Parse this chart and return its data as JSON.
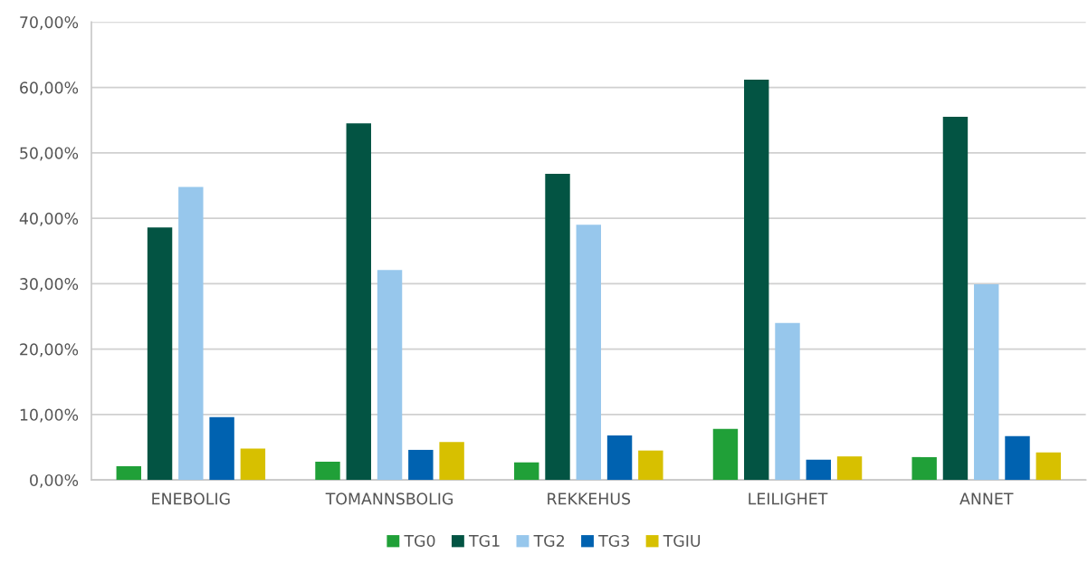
{
  "chart_data": {
    "type": "bar",
    "categories": [
      "ENEBOLIG",
      "TOMANNSBOLIG",
      "REKKEHUS",
      "LEILIGHET",
      "ANNET"
    ],
    "series": [
      {
        "name": "TG0",
        "color": "#20a038",
        "values": [
          2.1,
          2.8,
          2.7,
          7.8,
          3.5
        ]
      },
      {
        "name": "TG1",
        "color": "#035443",
        "values": [
          38.6,
          54.5,
          46.8,
          61.2,
          55.5
        ]
      },
      {
        "name": "TG2",
        "color": "#97c7ec",
        "values": [
          44.8,
          32.1,
          39.0,
          24.0,
          29.9
        ]
      },
      {
        "name": "TG3",
        "color": "#0062b0",
        "values": [
          9.6,
          4.6,
          6.8,
          3.1,
          6.7
        ]
      },
      {
        "name": "TGIU",
        "color": "#d7c000",
        "values": [
          4.8,
          5.8,
          4.5,
          3.6,
          4.2
        ]
      }
    ],
    "ylim": [
      0,
      70
    ],
    "yticks": [
      {
        "value": 0,
        "label": "0,00%"
      },
      {
        "value": 10,
        "label": "10,00%"
      },
      {
        "value": 20,
        "label": "20,00%"
      },
      {
        "value": 30,
        "label": "30,00%"
      },
      {
        "value": 40,
        "label": "40,00%"
      },
      {
        "value": 50,
        "label": "50,00%"
      },
      {
        "value": 60,
        "label": "60,00%"
      },
      {
        "value": 70,
        "label": "70,00%"
      }
    ],
    "grid": "y",
    "legend": "bottom"
  }
}
